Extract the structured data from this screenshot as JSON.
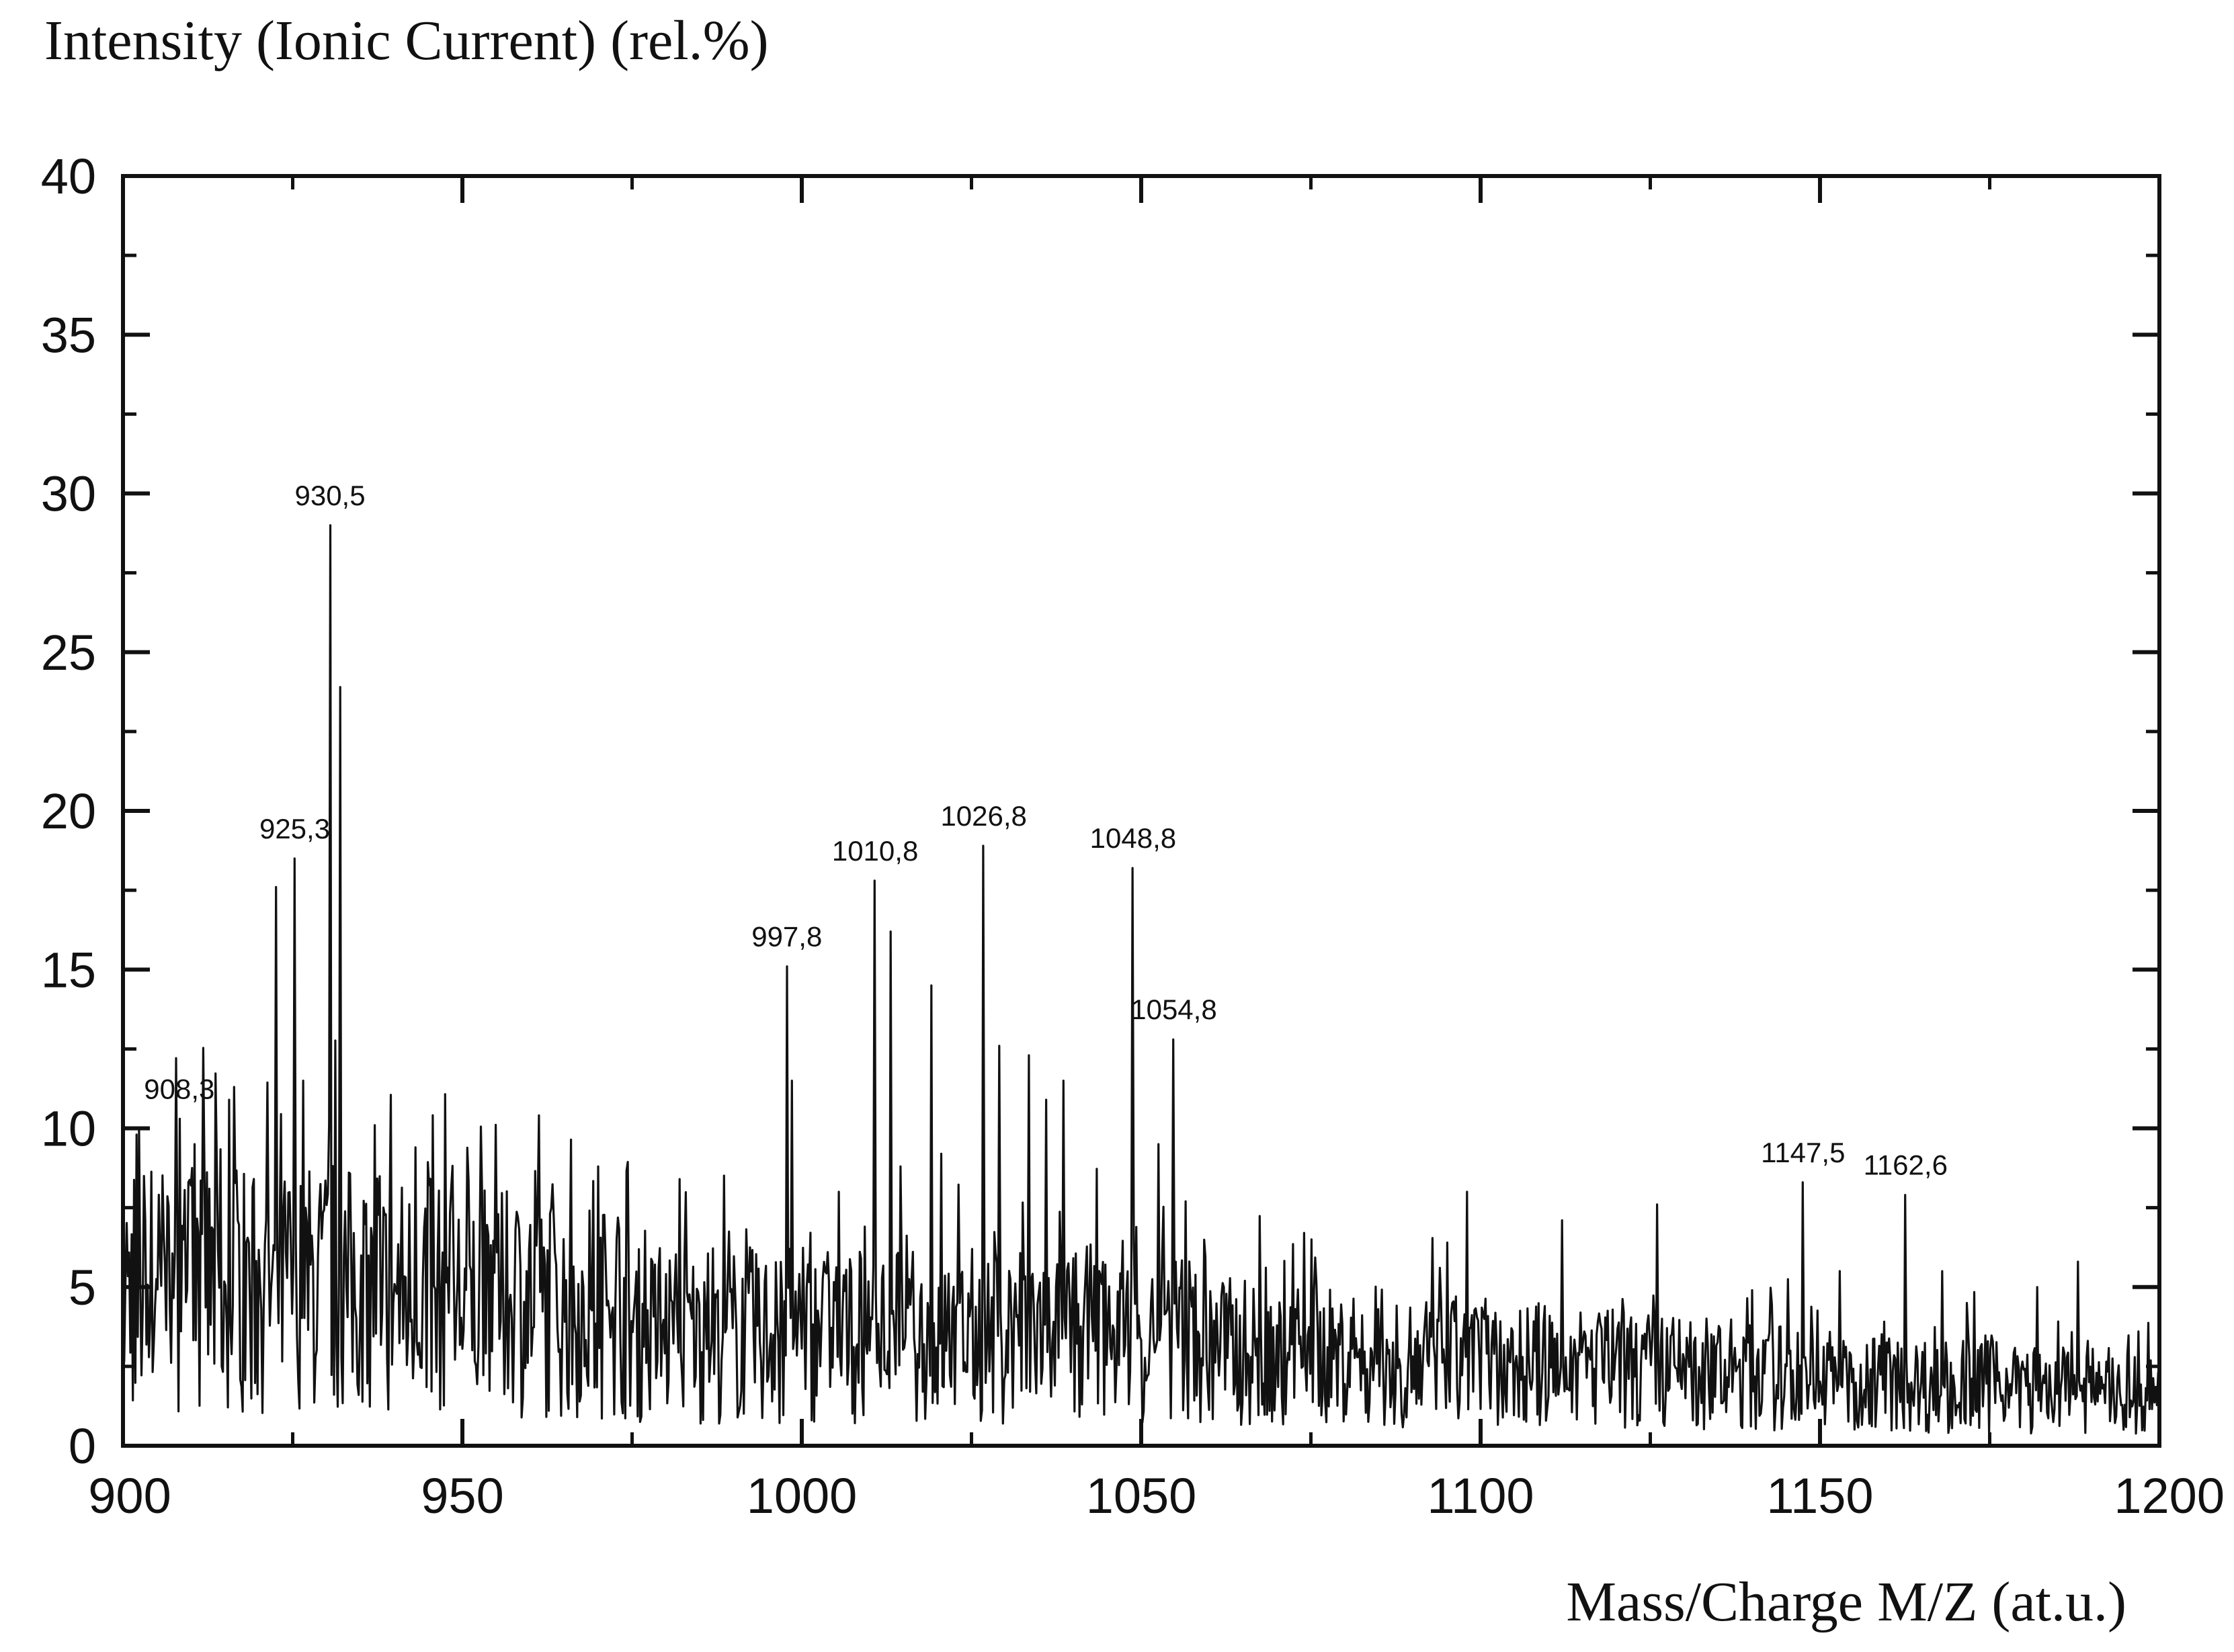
{
  "chart_data": {
    "type": "line",
    "title": "",
    "ylabel": "Intensity (Ionic Current) (rel.%)",
    "xlabel": "Mass/Charge M/Z (at.u.)",
    "xlim": [
      900,
      1200
    ],
    "ylim": [
      0,
      40
    ],
    "x_ticks": [
      900,
      950,
      1000,
      1050,
      1100,
      1150,
      1200
    ],
    "y_ticks": [
      0,
      5,
      10,
      15,
      20,
      25,
      30,
      35,
      40
    ],
    "x_tick_labels": [
      "900",
      "950",
      "1000",
      "1050",
      "1100",
      "1150",
      "1200"
    ],
    "y_tick_labels": [
      "0",
      "5",
      "10",
      "15",
      "20",
      "25",
      "30",
      "35",
      "40"
    ],
    "grid": false,
    "line_color": "#111111",
    "baseline_noise": {
      "seed": 7,
      "points_per_unit": 5.5
    },
    "peaks": [
      {
        "x": 902.0,
        "y": 9.8
      },
      {
        "x": 908.3,
        "y": 10.3,
        "label": "908,3"
      },
      {
        "x": 910.5,
        "y": 9.5
      },
      {
        "x": 915.6,
        "y": 10.9
      },
      {
        "x": 922.5,
        "y": 17.6
      },
      {
        "x": 925.3,
        "y": 18.5,
        "label": "925,3"
      },
      {
        "x": 926.5,
        "y": 11.5
      },
      {
        "x": 930.5,
        "y": 29.0,
        "label": "930,5"
      },
      {
        "x": 932.0,
        "y": 23.9
      },
      {
        "x": 937.0,
        "y": 10.1
      },
      {
        "x": 943.0,
        "y": 9.4
      },
      {
        "x": 970.0,
        "y": 8.8
      },
      {
        "x": 982.0,
        "y": 8.4
      },
      {
        "x": 997.8,
        "y": 15.1,
        "label": "997,8"
      },
      {
        "x": 998.5,
        "y": 11.5
      },
      {
        "x": 1005.5,
        "y": 8.0
      },
      {
        "x": 1010.8,
        "y": 17.8,
        "label": "1010,8"
      },
      {
        "x": 1013.0,
        "y": 16.2
      },
      {
        "x": 1019.0,
        "y": 14.5
      },
      {
        "x": 1020.5,
        "y": 9.2
      },
      {
        "x": 1026.8,
        "y": 18.9,
        "label": "1026,8"
      },
      {
        "x": 1029.0,
        "y": 12.6
      },
      {
        "x": 1033.5,
        "y": 12.3
      },
      {
        "x": 1036.0,
        "y": 10.9
      },
      {
        "x": 1038.5,
        "y": 11.5
      },
      {
        "x": 1048.8,
        "y": 18.2,
        "label": "1048,8"
      },
      {
        "x": 1052.5,
        "y": 9.5
      },
      {
        "x": 1054.8,
        "y": 12.8,
        "label": "1054,8"
      },
      {
        "x": 1056.5,
        "y": 7.7
      },
      {
        "x": 1075.0,
        "y": 6.5
      },
      {
        "x": 1095.0,
        "y": 6.4
      },
      {
        "x": 1098.0,
        "y": 8.0
      },
      {
        "x": 1112.0,
        "y": 7.1
      },
      {
        "x": 1126.0,
        "y": 7.6
      },
      {
        "x": 1140.0,
        "y": 4.9
      },
      {
        "x": 1147.5,
        "y": 8.3,
        "label": "1147,5"
      },
      {
        "x": 1153.0,
        "y": 5.5
      },
      {
        "x": 1162.6,
        "y": 7.9,
        "label": "1162,6"
      },
      {
        "x": 1168.0,
        "y": 5.5
      },
      {
        "x": 1182.0,
        "y": 5.0
      },
      {
        "x": 1188.0,
        "y": 5.8
      },
      {
        "x": 1197.0,
        "y": 3.6
      }
    ]
  }
}
